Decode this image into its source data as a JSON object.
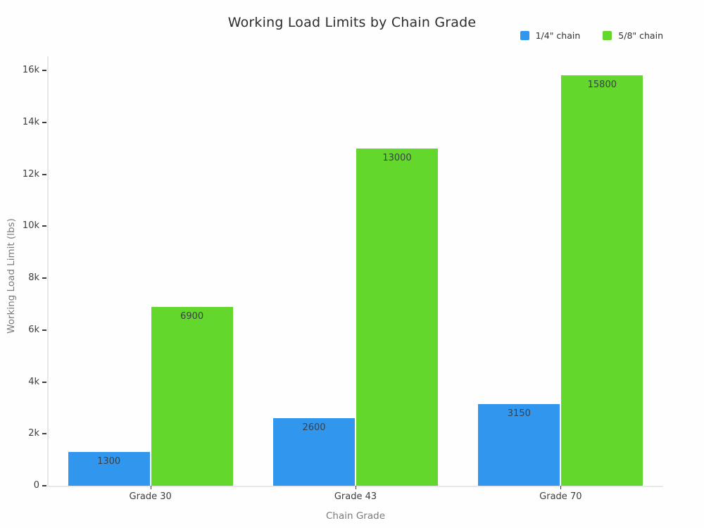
{
  "chart_data": {
    "type": "bar",
    "title": "Working Load Limits by Chain Grade",
    "xlabel": "Chain Grade",
    "ylabel": "Working Load Limit (lbs)",
    "categories": [
      "Grade 30",
      "Grade 43",
      "Grade 70"
    ],
    "series": [
      {
        "name": "1/4\" chain",
        "color": "#3196ee",
        "values": [
          1300,
          2600,
          3150
        ]
      },
      {
        "name": "5/8\" chain",
        "color": "#63d72c",
        "values": [
          6900,
          13000,
          15800
        ]
      }
    ],
    "bar_labels": true,
    "ylim": [
      0,
      16000
    ],
    "yticks": [
      {
        "value": 0,
        "label": "0"
      },
      {
        "value": 2000,
        "label": "2k"
      },
      {
        "value": 4000,
        "label": "4k"
      },
      {
        "value": 6000,
        "label": "6k"
      },
      {
        "value": 8000,
        "label": "8k"
      },
      {
        "value": 10000,
        "label": "10k"
      },
      {
        "value": 12000,
        "label": "12k"
      },
      {
        "value": 14000,
        "label": "14k"
      },
      {
        "value": 16000,
        "label": "16k"
      }
    ],
    "grid": false,
    "legend_position": "top-right",
    "colors": {
      "title_text": "#2d2d30",
      "tick_text": "#3d3d3d",
      "axis_title_text": "#7a7a7e",
      "axis_line": "#e8e8ea",
      "background": "#fefefe"
    }
  }
}
